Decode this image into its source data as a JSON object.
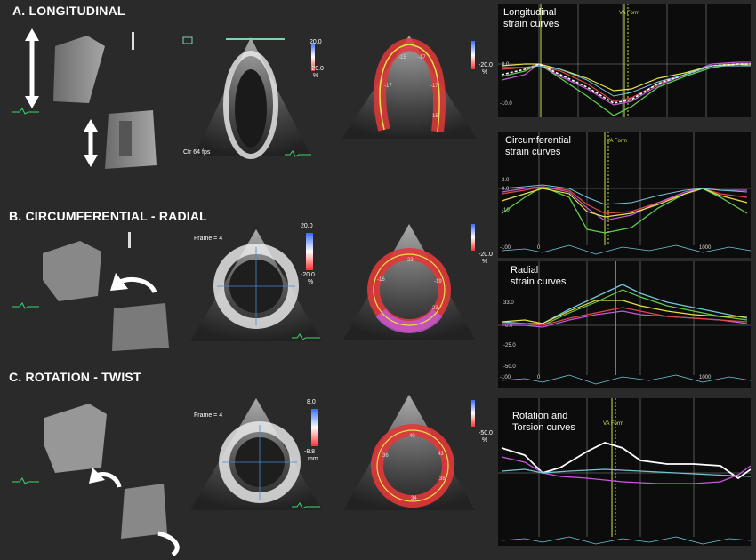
{
  "sections": {
    "a": {
      "title": "A. LONGITUDINAL"
    },
    "b": {
      "title": "B. CIRCUMFERENTIAL - RADIAL"
    },
    "c": {
      "title": "C. ROTATION - TWIST"
    }
  },
  "charts": {
    "longitudinal": {
      "label_line1": "Longitudinal",
      "label_line2": "strain curves",
      "vaform": "VA Form"
    },
    "circumferential": {
      "label_line1": "Circumferential",
      "label_line2": "strain curves",
      "vaform": "VA Form"
    },
    "radial": {
      "label_line1": "Radial",
      "label_line2": "strain curves"
    },
    "rotation": {
      "label_line1": "Rotation and",
      "label_line2": "Torsion curves",
      "vaform": "VA Form"
    }
  },
  "echo": {
    "a_scale_top": "20.0",
    "a_scale_bottom": "-20.0",
    "a_scale_unit": "%",
    "a2_scale_bottom": "-20.0",
    "a2_scale_unit": "%",
    "a_fps": "Cfr 64 fps",
    "b_frame": "Frame = 4",
    "b_scale_top": "20.0",
    "b_scale_bottom": "-20.0",
    "b_scale_unit": "%",
    "b2_scale_bottom": "-20.0",
    "b2_scale_unit": "%",
    "c_frame": "Frame = 4",
    "c_scale_top": "8.0",
    "c_scale_bottom": "-8.8",
    "c_scale_unit": "mm",
    "c2_scale_bottom": "-50.0",
    "c2_scale_unit": "%"
  },
  "segment_labels": {
    "long": [
      "-15",
      "-17",
      "-17",
      "-17",
      "-15"
    ],
    "radial": [
      "-23",
      "-16",
      "-19",
      "-23"
    ],
    "rot": [
      "40",
      "38",
      "34",
      "43",
      "36"
    ]
  },
  "colors": {
    "background": "#2a2a2a",
    "curve_green": "#5fcf4a",
    "curve_yellow": "#e6e14a",
    "curve_magenta": "#c35ad8",
    "curve_red": "#e04848",
    "curve_cyan": "#6fc6d8",
    "curve_white": "#ffffff",
    "marker_line": "#c8e04a"
  }
}
